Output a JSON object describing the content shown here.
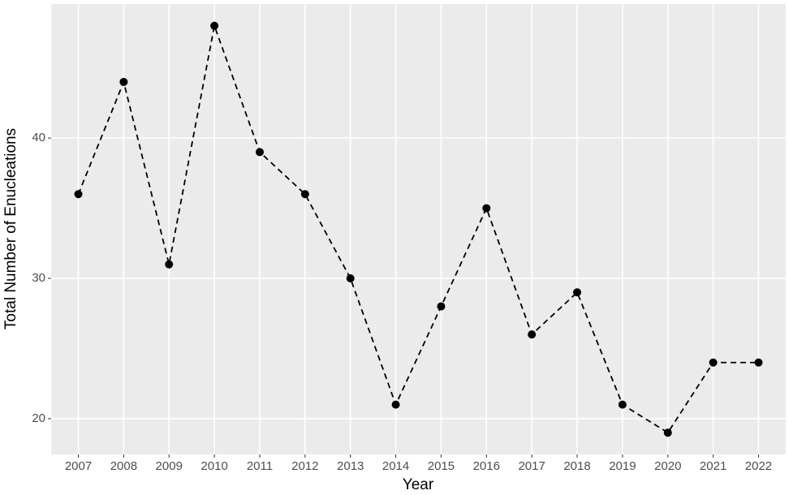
{
  "chart_data": {
    "type": "line",
    "x_label": "Year",
    "y_label": "Total Number of Enucleations",
    "categories": [
      "2007",
      "2008",
      "2009",
      "2010",
      "2011",
      "2012",
      "2013",
      "2014",
      "2015",
      "2016",
      "2017",
      "2018",
      "2019",
      "2020",
      "2021",
      "2022"
    ],
    "values": [
      36,
      44,
      31,
      48,
      39,
      36,
      30,
      21,
      28,
      35,
      26,
      29,
      21,
      19,
      24,
      24
    ],
    "color": "#000000",
    "line_style": "dashed",
    "ylim": [
      17.45,
      49.55
    ],
    "yticks": [
      20,
      30,
      40
    ],
    "grid": true
  }
}
